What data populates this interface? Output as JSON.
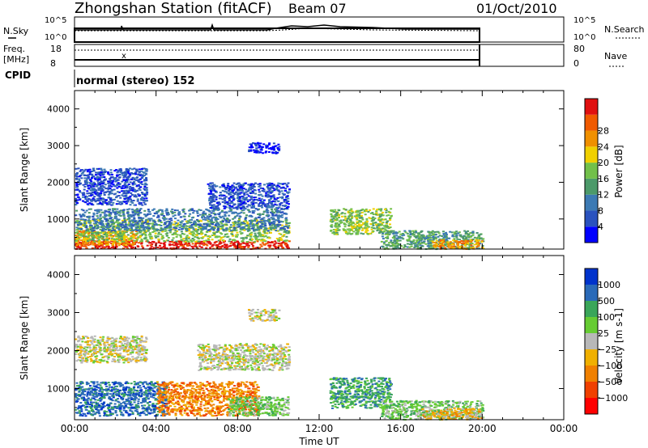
{
  "header": {
    "title": "Zhongshan Station (fitACF)",
    "beam": "Beam 07",
    "date": "01/Oct/2010"
  },
  "top_panels": {
    "nsky_label": "N.Sky",
    "nsky_ticks": [
      "10^5",
      "10^0"
    ],
    "nsearch_label": "N.Search",
    "nsearch_ticks": [
      "10^5",
      "10^0"
    ],
    "freq_label": "Freq.",
    "freq_unit": "[MHz]",
    "freq_ticks": [
      "18",
      "8"
    ],
    "nave_label": "Nave",
    "nave_ticks": [
      "80",
      "0"
    ],
    "cpid_label": "CPID",
    "cpid_value": "normal (stereo) 152"
  },
  "colors": {
    "power_scale": [
      "#0000ff",
      "#2a52be",
      "#3c7ab4",
      "#4c9a6a",
      "#72c04a",
      "#f0d000",
      "#f09000",
      "#f05a00",
      "#e01010"
    ],
    "velocity_scale": [
      "#ff0000",
      "#f04000",
      "#f08000",
      "#f0b000",
      "#b8b8b8",
      "#66cc33",
      "#3aa65a",
      "#2a6ab8",
      "#0033cc"
    ]
  },
  "chart_data": [
    {
      "type": "heatmap",
      "ylabel": "Slant Range [km]",
      "yticks": [
        "1000",
        "2000",
        "3000",
        "4000"
      ],
      "colorbar_label": "Power [dB]",
      "colorbar_ticks": [
        "4",
        "8",
        "12",
        "16",
        "20",
        "24",
        "28"
      ],
      "xlabel": "",
      "xlim": [
        "00:00",
        "24:00"
      ],
      "ylim": [
        180,
        4500
      ],
      "blobs": [
        {
          "t0": 0.0,
          "t1": 10.5,
          "r0": 200,
          "r1": 420,
          "level": 8
        },
        {
          "t0": 0.0,
          "t1": 3.0,
          "r0": 300,
          "r1": 700,
          "level": 6
        },
        {
          "t0": 0.0,
          "t1": 10.5,
          "r0": 400,
          "r1": 1000,
          "level": 4
        },
        {
          "t0": 0.0,
          "t1": 10.5,
          "r0": 700,
          "r1": 1300,
          "level": 2
        },
        {
          "t0": 0.0,
          "t1": 3.5,
          "r0": 1400,
          "r1": 2400,
          "level": 1
        },
        {
          "t0": 6.5,
          "t1": 10.5,
          "r0": 1300,
          "r1": 2000,
          "level": 1
        },
        {
          "t0": 8.5,
          "t1": 10.0,
          "r0": 2800,
          "r1": 3100,
          "level": 0
        },
        {
          "t0": 12.5,
          "t1": 15.5,
          "r0": 600,
          "r1": 1300,
          "level": 4
        },
        {
          "t0": 15.0,
          "t1": 20.0,
          "r0": 200,
          "r1": 700,
          "level": 3
        },
        {
          "t0": 17.5,
          "t1": 20.0,
          "r0": 200,
          "r1": 450,
          "level": 6
        }
      ]
    },
    {
      "type": "heatmap",
      "ylabel": "Slant Range [km]",
      "yticks": [
        "1000",
        "2000",
        "3000",
        "4000"
      ],
      "colorbar_label": "Velocity [m s-1]",
      "colorbar_ticks": [
        "1000",
        "500",
        "100",
        "25",
        "−25",
        "−100",
        "−500",
        "−1000"
      ],
      "xlabel": "Time UT",
      "xticks": [
        "00:00",
        "04:00",
        "08:00",
        "12:00",
        "16:00",
        "20:00",
        "00:00"
      ],
      "xlim": [
        "00:00",
        "24:00"
      ],
      "ylim": [
        180,
        4500
      ],
      "blobs": [
        {
          "t0": 0.0,
          "t1": 4.5,
          "r0": 300,
          "r1": 1200,
          "level": 7
        },
        {
          "t0": 4.0,
          "t1": 9.0,
          "r0": 300,
          "r1": 1200,
          "level": 2
        },
        {
          "t0": 7.5,
          "t1": 10.5,
          "r0": 300,
          "r1": 800,
          "level": 5
        },
        {
          "t0": 0.0,
          "t1": 3.5,
          "r0": 1700,
          "r1": 2400,
          "level": 4
        },
        {
          "t0": 6.0,
          "t1": 10.5,
          "r0": 1500,
          "r1": 2200,
          "level": 4
        },
        {
          "t0": 8.5,
          "t1": 10.0,
          "r0": 2800,
          "r1": 3100,
          "level": 4
        },
        {
          "t0": 12.5,
          "t1": 15.5,
          "r0": 500,
          "r1": 1300,
          "level": 6
        },
        {
          "t0": 15.0,
          "t1": 20.0,
          "r0": 200,
          "r1": 700,
          "level": 5
        },
        {
          "t0": 17.0,
          "t1": 20.0,
          "r0": 200,
          "r1": 500,
          "level": 3
        }
      ]
    }
  ]
}
